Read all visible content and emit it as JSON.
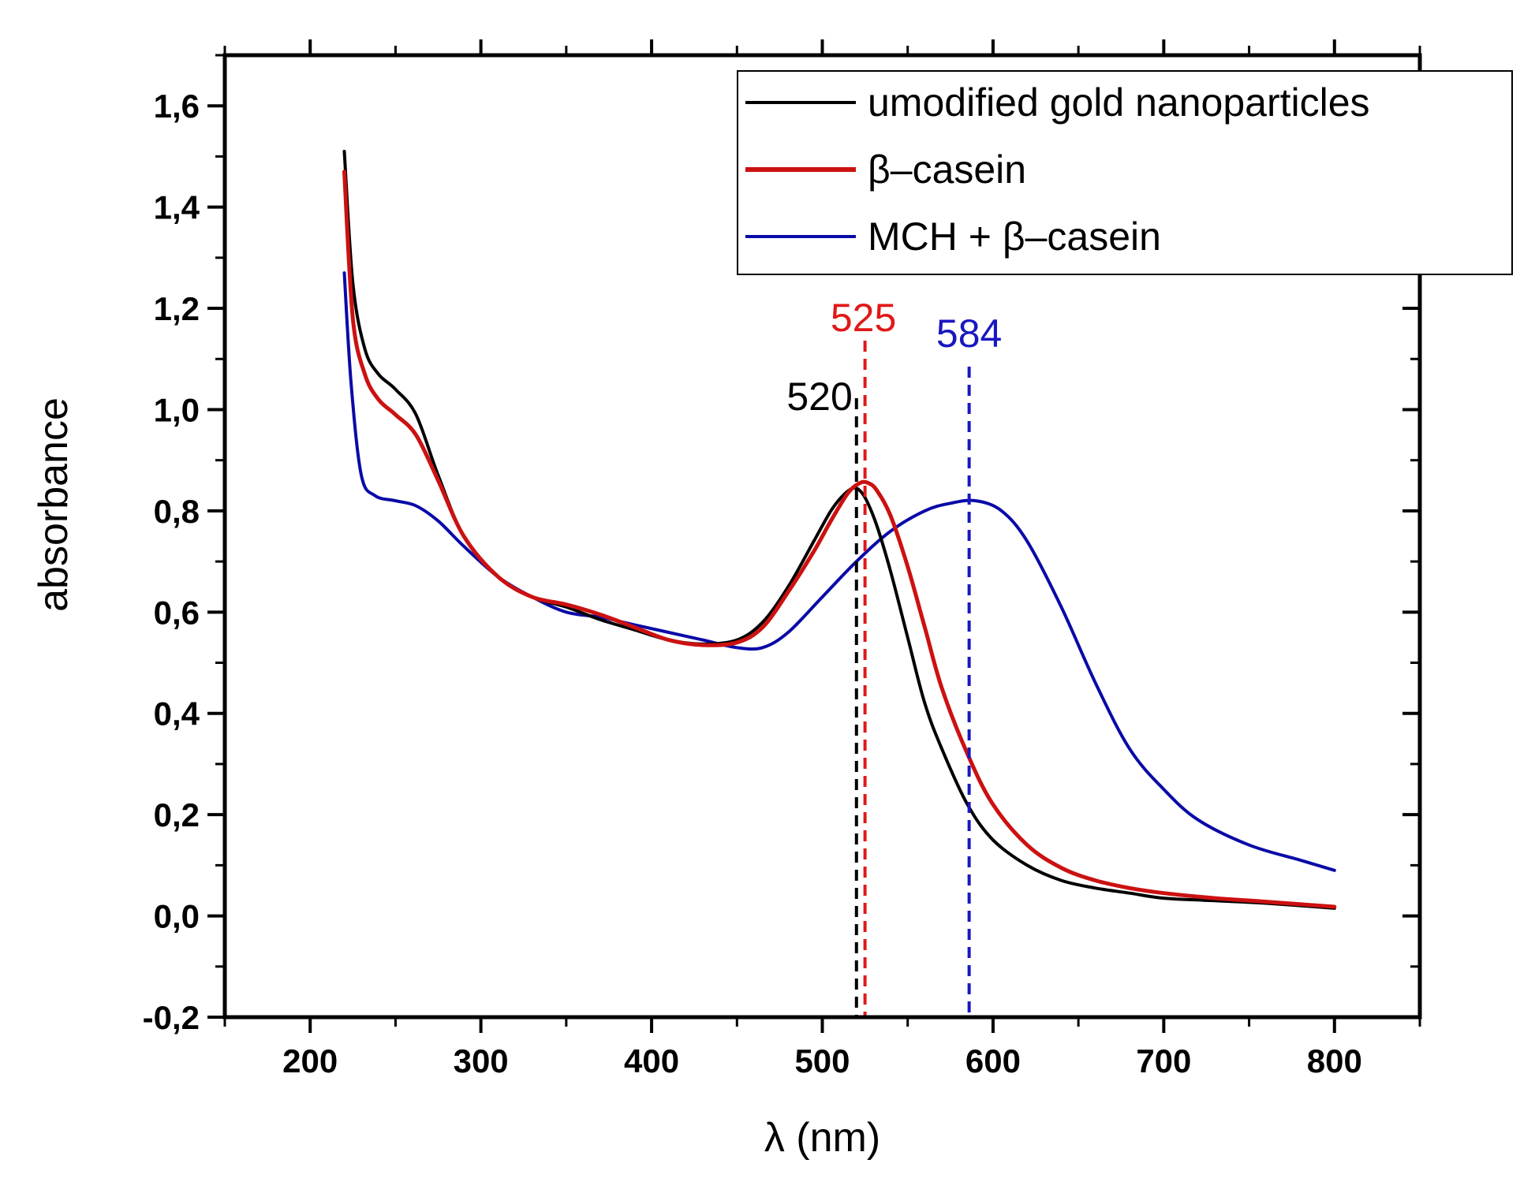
{
  "chart_data": {
    "type": "line",
    "xlabel": "λ (nm)",
    "ylabel": "absorbance",
    "xlim": [
      150,
      850
    ],
    "ylim": [
      -0.2,
      1.7
    ],
    "x_ticks": [
      200,
      300,
      400,
      500,
      600,
      700,
      800
    ],
    "x_tick_labels": [
      "200",
      "300",
      "400",
      "500",
      "600",
      "700",
      "800"
    ],
    "y_ticks": [
      -0.2,
      0.0,
      0.2,
      0.4,
      0.6,
      0.8,
      1.0,
      1.2,
      1.4,
      1.6
    ],
    "y_tick_labels": [
      "-0,2",
      "0,0",
      "0,2",
      "0,4",
      "0,6",
      "0,8",
      "1,0",
      "1,2",
      "1,4",
      "1,6"
    ],
    "legend_position": "top-right",
    "series": [
      {
        "name": "umodified gold nanoparticles",
        "color": "#000000",
        "x": [
          220,
          225,
          232,
          240,
          250,
          262,
          275,
          290,
          310,
          330,
          350,
          370,
          390,
          410,
          430,
          450,
          465,
          480,
          495,
          505,
          512,
          518,
          522,
          526,
          532,
          540,
          550,
          560,
          570,
          585,
          600,
          620,
          640,
          660,
          680,
          700,
          730,
          760,
          800
        ],
        "y": [
          1.51,
          1.25,
          1.12,
          1.07,
          1.04,
          0.99,
          0.87,
          0.75,
          0.67,
          0.63,
          0.61,
          0.585,
          0.565,
          0.545,
          0.537,
          0.545,
          0.58,
          0.65,
          0.74,
          0.8,
          0.83,
          0.845,
          0.84,
          0.82,
          0.77,
          0.68,
          0.55,
          0.42,
          0.33,
          0.22,
          0.15,
          0.1,
          0.07,
          0.055,
          0.045,
          0.035,
          0.03,
          0.025,
          0.015
        ]
      },
      {
        "name": "β–casein",
        "color": "#cc1111",
        "x": [
          220,
          225,
          232,
          240,
          250,
          262,
          275,
          290,
          310,
          330,
          350,
          370,
          390,
          410,
          430,
          450,
          465,
          480,
          495,
          505,
          515,
          522,
          527,
          532,
          540,
          550,
          560,
          570,
          585,
          600,
          620,
          640,
          660,
          680,
          700,
          730,
          760,
          800
        ],
        "y": [
          1.47,
          1.18,
          1.07,
          1.02,
          0.99,
          0.95,
          0.86,
          0.75,
          0.67,
          0.63,
          0.615,
          0.595,
          0.57,
          0.545,
          0.535,
          0.54,
          0.57,
          0.64,
          0.72,
          0.78,
          0.835,
          0.855,
          0.855,
          0.84,
          0.79,
          0.69,
          0.57,
          0.45,
          0.32,
          0.22,
          0.14,
          0.095,
          0.07,
          0.055,
          0.045,
          0.035,
          0.028,
          0.018
        ]
      },
      {
        "name": "MCH + β–casein",
        "color": "#0a0aa8",
        "x": [
          220,
          224,
          230,
          238,
          250,
          262,
          275,
          290,
          310,
          330,
          350,
          370,
          390,
          410,
          430,
          450,
          465,
          480,
          500,
          520,
          540,
          560,
          575,
          590,
          605,
          620,
          640,
          660,
          680,
          700,
          720,
          750,
          780,
          800
        ],
        "y": [
          1.27,
          1.05,
          0.87,
          0.83,
          0.82,
          0.81,
          0.78,
          0.73,
          0.67,
          0.63,
          0.6,
          0.59,
          0.575,
          0.56,
          0.545,
          0.53,
          0.53,
          0.56,
          0.63,
          0.7,
          0.76,
          0.8,
          0.815,
          0.82,
          0.8,
          0.74,
          0.61,
          0.46,
          0.33,
          0.25,
          0.19,
          0.14,
          0.11,
          0.09
        ]
      }
    ],
    "annotations": [
      {
        "text": "520",
        "x": 520,
        "color": "#000000"
      },
      {
        "text": "525",
        "x": 525,
        "color": "#e01818"
      },
      {
        "text": "584",
        "x": 586,
        "color": "#1818c0"
      }
    ]
  }
}
